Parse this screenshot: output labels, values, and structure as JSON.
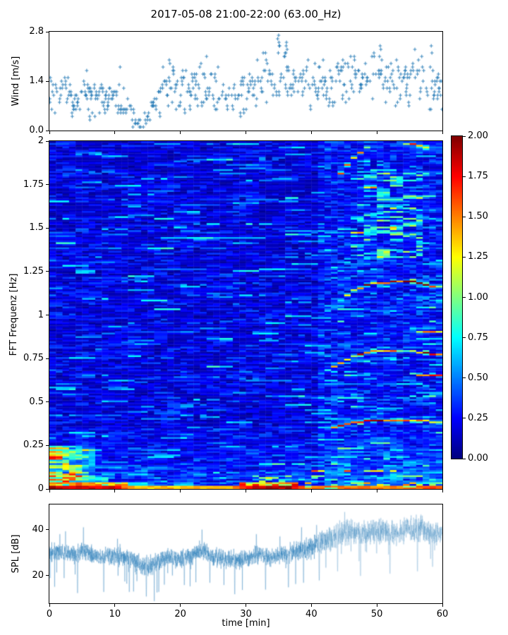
{
  "figure": {
    "title": "2017-05-08 21:00-22:00 (63.00_Hz)",
    "background": "#ffffff",
    "axis_color": "#000000"
  },
  "x_axis": {
    "label": "time [min]",
    "range": [
      0,
      60
    ],
    "tick_values": [
      0,
      10,
      20,
      30,
      40,
      50,
      60
    ],
    "tick_labels": [
      "0",
      "10",
      "20",
      "30",
      "40",
      "50",
      "60"
    ]
  },
  "chart_data": [
    {
      "id": "wind",
      "type": "scatter",
      "ylabel": "Wind [m/s]",
      "xlim": [
        0,
        60
      ],
      "ylim": [
        0,
        2.8
      ],
      "yticks": {
        "values": [
          0.0,
          1.4,
          2.8
        ],
        "labels": [
          "0.0",
          "1.4",
          "2.8"
        ]
      },
      "marker": "plus",
      "color": "#1f77b4",
      "quantize_step_ms": 0.1,
      "sample_dt_min": 0.1,
      "mean_by_minute": [
        1.0,
        0.95,
        0.9,
        1.0,
        0.9,
        1.0,
        1.05,
        0.9,
        0.85,
        0.9,
        1.0,
        0.9,
        0.5,
        0.25,
        0.22,
        0.35,
        0.8,
        1.15,
        1.35,
        1.25,
        1.2,
        1.15,
        1.25,
        1.4,
        1.35,
        1.2,
        1.1,
        1.05,
        1.0,
        0.95,
        1.1,
        1.15,
        1.3,
        1.45,
        1.4,
        1.6,
        1.55,
        1.25,
        1.2,
        1.4,
        1.45,
        1.4,
        1.3,
        1.35,
        1.5,
        1.55,
        1.6,
        1.4,
        1.35,
        1.5,
        1.65,
        1.55,
        1.35,
        1.3,
        1.4,
        1.5,
        1.55,
        1.35,
        1.3,
        1.2,
        1.15
      ],
      "spread_by_minute": [
        0.32,
        0.32,
        0.32,
        0.32,
        0.32,
        0.32,
        0.32,
        0.32,
        0.32,
        0.32,
        0.32,
        0.3,
        0.25,
        0.12,
        0.1,
        0.18,
        0.28,
        0.33,
        0.38,
        0.35,
        0.33,
        0.33,
        0.33,
        0.4,
        0.38,
        0.33,
        0.33,
        0.33,
        0.33,
        0.33,
        0.35,
        0.35,
        0.4,
        0.45,
        0.42,
        0.5,
        0.48,
        0.35,
        0.33,
        0.38,
        0.36,
        0.35,
        0.33,
        0.34,
        0.38,
        0.4,
        0.42,
        0.36,
        0.35,
        0.4,
        0.45,
        0.42,
        0.36,
        0.34,
        0.38,
        0.42,
        0.42,
        0.36,
        0.38,
        0.34,
        0.32
      ],
      "peak_points": [
        [
          35.0,
          2.7
        ],
        [
          35.05,
          2.5
        ],
        [
          35.1,
          2.35
        ],
        [
          33.0,
          2.2
        ],
        [
          33.1,
          2.05
        ],
        [
          24.0,
          2.1
        ],
        [
          18.3,
          1.95
        ],
        [
          18.4,
          1.85
        ],
        [
          36.2,
          2.45
        ],
        [
          36.3,
          2.3
        ],
        [
          36.1,
          2.2
        ],
        [
          39.5,
          2.05
        ],
        [
          41.8,
          1.95
        ],
        [
          46.0,
          2.15
        ],
        [
          50.5,
          2.4
        ],
        [
          50.6,
          2.25
        ],
        [
          50.4,
          2.1
        ],
        [
          55.8,
          2.3
        ],
        [
          58.3,
          2.4
        ],
        [
          58.4,
          2.2
        ],
        [
          44.8,
          2.0
        ],
        [
          53.0,
          1.95
        ],
        [
          5.7,
          1.7
        ],
        [
          10.8,
          1.75
        ]
      ]
    },
    {
      "id": "spectrogram",
      "type": "heatmap",
      "ylabel": "FFT Frequenz [Hz]",
      "xlim": [
        0,
        60
      ],
      "ylim": [
        0,
        2
      ],
      "yticks": {
        "values": [
          0,
          0.25,
          0.5,
          0.75,
          1,
          1.25,
          1.5,
          1.75,
          2
        ],
        "labels": [
          "0",
          "0.25",
          "0.5",
          "0.75",
          "1",
          "1.25",
          "1.5",
          "1.75",
          "2"
        ]
      },
      "colormap": "jet",
      "clim": [
        0,
        2
      ],
      "cols": 60,
      "rows": 200,
      "background_level": [
        0.1,
        0.4
      ],
      "onset_min": 40,
      "fundamental_track": {
        "t": [
          40,
          42,
          44,
          46,
          49,
          55,
          60
        ],
        "f0_hz": [
          0.315,
          0.335,
          0.358,
          0.378,
          0.395,
          0.398,
          0.386
        ]
      },
      "harmonics": [
        {
          "k": 1,
          "t_start": 42.5,
          "t_end": 60,
          "strength_t": [
            42.5,
            44,
            46,
            48,
            52,
            56,
            60
          ],
          "strength": [
            0.5,
            1.9,
            1.8,
            1.7,
            1.6,
            1.3,
            1.5
          ],
          "sporadic": false
        },
        {
          "k": 2,
          "t_start": 40,
          "t_end": 60,
          "strength_t": [
            40,
            43,
            44.5,
            46,
            48,
            51,
            54,
            57,
            60
          ],
          "strength": [
            0.5,
            0.9,
            1.9,
            1.6,
            1.8,
            1.7,
            1.2,
            1.5,
            1.9
          ],
          "sporadic": false
        },
        {
          "k": 3,
          "t_start": 41,
          "t_end": 60,
          "strength_t": [
            41,
            44,
            46,
            47,
            50,
            53.5,
            55,
            58,
            60
          ],
          "strength": [
            0.4,
            0.8,
            1.2,
            1.9,
            1.8,
            1.7,
            1.9,
            1.8,
            1.4
          ],
          "sporadic": false
        },
        {
          "k": 4,
          "t_start": 44,
          "t_end": 60,
          "strength_t": [
            44,
            48,
            52,
            56,
            60
          ],
          "strength": [
            0.4,
            0.7,
            0.8,
            0.7,
            0.5
          ],
          "sporadic": true
        },
        {
          "k": 5,
          "t_start": 44,
          "t_end": 60,
          "strength_t": [
            44,
            46,
            48,
            49,
            54,
            55,
            58,
            58.5,
            60
          ],
          "strength": [
            1.5,
            1.6,
            1.4,
            0.3,
            0.4,
            1.5,
            1.5,
            0.4,
            0.6
          ],
          "sporadic": false
        }
      ],
      "extra_streaks": [
        {
          "t": [
            56,
            60
          ],
          "f": 0.655,
          "value": 1.5,
          "sporadic": false
        },
        {
          "t": [
            56.5,
            60
          ],
          "f": 0.905,
          "value": 1.35,
          "sporadic": false
        },
        {
          "t": [
            40,
            47
          ],
          "f": 0.105,
          "value": 1.4,
          "sporadic": true
        },
        {
          "t": [
            48,
            56
          ],
          "f": 0.1,
          "value": 1.2,
          "sporadic": true
        },
        {
          "t": [
            29.5,
            31.5
          ],
          "f": 0.02,
          "value": 1.5,
          "sporadic": false
        }
      ],
      "bottom_band_value_by_t": [
        [
          0,
          1.9
        ],
        [
          10,
          1.8
        ],
        [
          13,
          1.35
        ],
        [
          28,
          1.4
        ],
        [
          31,
          1.85
        ],
        [
          37,
          1.9
        ],
        [
          39,
          1.45
        ],
        [
          44,
          1.55
        ],
        [
          50,
          1.45
        ],
        [
          55,
          1.55
        ],
        [
          60,
          1.65
        ]
      ],
      "low_blob": {
        "t": [
          0,
          7
        ],
        "f": [
          0.025,
          0.25
        ],
        "peak": 1.35
      }
    },
    {
      "id": "colorbar",
      "type": "colorbar",
      "colormap": "jet",
      "range": [
        0,
        2
      ],
      "tick_values": [
        0,
        0.25,
        0.5,
        0.75,
        1,
        1.25,
        1.5,
        1.75,
        2
      ],
      "tick_labels": [
        "0.00",
        "0.25",
        "0.50",
        "0.75",
        "1.00",
        "1.25",
        "1.50",
        "1.75",
        "2.00"
      ]
    },
    {
      "id": "spl",
      "type": "line",
      "ylabel": "SPL [dB]",
      "xlim": [
        0,
        60
      ],
      "ylim": [
        8,
        51
      ],
      "yticks": {
        "values": [
          20,
          40
        ],
        "labels": [
          "20",
          "40"
        ]
      },
      "color": "#1f77b4",
      "samples_per_min": 60,
      "mean_by_minute": [
        30,
        30.5,
        29.5,
        30,
        28.5,
        31,
        30,
        29,
        28.5,
        29,
        28.5,
        28,
        27.5,
        26,
        24.5,
        24,
        25,
        26.5,
        27.5,
        27.5,
        27,
        28,
        29,
        31,
        30,
        28.5,
        27.5,
        27,
        27.5,
        26.5,
        27,
        28.5,
        29.5,
        28.5,
        28,
        29,
        29.5,
        30,
        31,
        31.5,
        32,
        33.5,
        35,
        36.5,
        37.5,
        39,
        39.5,
        39,
        38.5,
        39,
        39.5,
        40,
        39,
        38,
        39.5,
        40.5,
        40.5,
        40,
        38.5,
        38,
        38.5
      ],
      "sigma_by_minute": [
        2.6,
        2.6,
        2.6,
        2.6,
        2.6,
        2.6,
        2.6,
        2.6,
        2.6,
        2.6,
        2.6,
        2.6,
        2.7,
        2.9,
        2.9,
        2.9,
        2.9,
        2.8,
        2.6,
        2.6,
        2.6,
        2.6,
        2.6,
        2.7,
        2.6,
        2.6,
        2.6,
        2.6,
        2.6,
        2.6,
        2.6,
        2.7,
        2.7,
        2.6,
        2.6,
        2.6,
        2.7,
        2.8,
        3.0,
        3.0,
        3.0,
        3.2,
        3.4,
        3.5,
        3.6,
        3.6,
        3.6,
        3.5,
        3.4,
        3.4,
        3.5,
        3.5,
        3.5,
        3.4,
        3.6,
        3.6,
        3.6,
        3.5,
        3.4,
        3.3,
        3.3
      ],
      "down_spikes": [
        [
          4.3,
          12.5
        ],
        [
          8.3,
          13
        ],
        [
          12.2,
          13
        ],
        [
          14.8,
          11
        ],
        [
          16.7,
          13
        ],
        [
          20.6,
          16
        ],
        [
          24.5,
          17
        ],
        [
          28.3,
          12
        ],
        [
          33.0,
          14
        ],
        [
          36.5,
          15
        ],
        [
          38.8,
          17
        ],
        [
          41.2,
          18
        ],
        [
          44.0,
          22
        ],
        [
          47.5,
          20
        ],
        [
          52.0,
          21
        ],
        [
          56.2,
          22
        ],
        [
          58.5,
          24
        ]
      ],
      "up_spikes": [
        [
          1.6,
          38
        ],
        [
          5.2,
          41
        ],
        [
          10.4,
          36
        ],
        [
          23.3,
          40
        ],
        [
          31.6,
          38
        ],
        [
          35.2,
          37
        ],
        [
          38.5,
          41
        ],
        [
          40.8,
          42
        ]
      ]
    }
  ]
}
